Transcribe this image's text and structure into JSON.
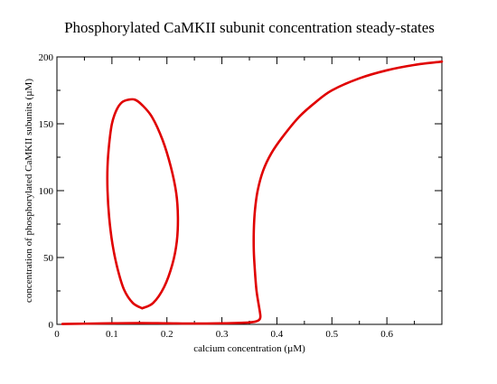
{
  "chart_data": {
    "type": "line",
    "title": "Phosphorylated CaMKII subunit concentration steady-states",
    "xlabel": "calcium concentration (µM)",
    "ylabel": "concentration of phosphorylated CaMKII subunits (µM)",
    "xlim": [
      0,
      0.7
    ],
    "ylim": [
      0,
      200
    ],
    "xticks": [
      "0",
      "0.1",
      "0.2",
      "0.3",
      "0.4",
      "0.5",
      "0.6"
    ],
    "xtick_values": [
      0,
      0.1,
      0.2,
      0.3,
      0.4,
      0.5,
      0.6
    ],
    "yticks": [
      "0",
      "50",
      "100",
      "150",
      "200"
    ],
    "ytick_values": [
      0,
      50,
      100,
      150,
      200
    ],
    "grid": false,
    "series_color": "#e00000",
    "series": [
      {
        "x": [
          0.01,
          0.05,
          0.1,
          0.15,
          0.2,
          0.25,
          0.3,
          0.34,
          0.36,
          0.368,
          0.37,
          0.368,
          0.363,
          0.36,
          0.358,
          0.358,
          0.36,
          0.365,
          0.375,
          0.39,
          0.41,
          0.44,
          0.47,
          0.5,
          0.55,
          0.6,
          0.65,
          0.7
        ],
        "y": [
          0.3,
          0.5,
          0.8,
          1.0,
          0.8,
          0.6,
          0.8,
          1.2,
          2.0,
          3.5,
          6.0,
          12,
          25,
          40,
          55,
          70,
          85,
          100,
          115,
          128,
          140,
          155,
          166,
          175,
          184,
          190,
          194,
          196.5
        ]
      },
      {
        "x": [
          0.155,
          0.175,
          0.195,
          0.21,
          0.218,
          0.22,
          0.217,
          0.207,
          0.192,
          0.173,
          0.155,
          0.142,
          0.13,
          0.118,
          0.108,
          0.1,
          0.095,
          0.092,
          0.092,
          0.095,
          0.101,
          0.11,
          0.122,
          0.138,
          0.155
        ],
        "y": [
          12,
          16,
          28,
          45,
          62,
          80,
          98,
          118,
          138,
          155,
          164,
          168,
          168,
          166,
          160,
          150,
          135,
          118,
          100,
          80,
          60,
          42,
          26,
          16,
          12
        ]
      }
    ]
  }
}
